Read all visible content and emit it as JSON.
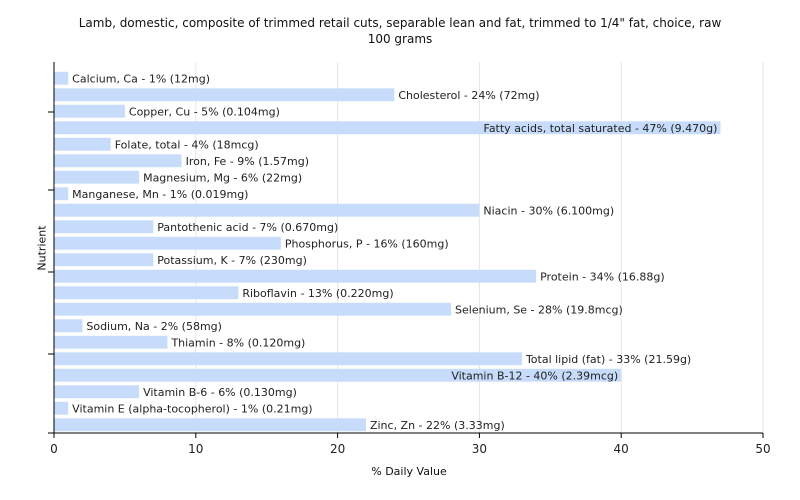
{
  "chart_data": {
    "type": "bar",
    "orientation": "horizontal",
    "title": "Lamb, domestic, composite of trimmed retail cuts, separable lean and fat, trimmed to 1/4\" fat, choice, raw",
    "subtitle": "100 grams",
    "xlabel": "% Daily Value",
    "ylabel": "Nutrient",
    "xlim": [
      0,
      50
    ],
    "xticks": [
      0,
      10,
      20,
      30,
      40,
      50
    ],
    "grid": true,
    "bar_color": "#c6dcfa",
    "categories": [
      "Calcium, Ca",
      "Cholesterol",
      "Copper, Cu",
      "Fatty acids, total saturated",
      "Folate, total",
      "Iron, Fe",
      "Magnesium, Mg",
      "Manganese, Mn",
      "Niacin",
      "Pantothenic acid",
      "Phosphorus, P",
      "Potassium, K",
      "Protein",
      "Riboflavin",
      "Selenium, Se",
      "Sodium, Na",
      "Thiamin",
      "Total lipid (fat)",
      "Vitamin B-12",
      "Vitamin B-6",
      "Vitamin E (alpha-tocopherol)",
      "Zinc, Zn"
    ],
    "values": [
      1,
      24,
      5,
      47,
      4,
      9,
      6,
      1,
      30,
      7,
      16,
      7,
      34,
      13,
      28,
      2,
      8,
      33,
      40,
      6,
      1,
      22
    ],
    "labels": [
      "Calcium, Ca - 1% (12mg)",
      "Cholesterol - 24% (72mg)",
      "Copper, Cu - 5% (0.104mg)",
      "Fatty acids, total saturated - 47% (9.470g)",
      "Folate, total - 4% (18mcg)",
      "Iron, Fe - 9% (1.57mg)",
      "Magnesium, Mg - 6% (22mg)",
      "Manganese, Mn - 1% (0.019mg)",
      "Niacin - 30% (6.100mg)",
      "Pantothenic acid - 7% (0.670mg)",
      "Phosphorus, P - 16% (160mg)",
      "Potassium, K - 7% (230mg)",
      "Protein - 34% (16.88g)",
      "Riboflavin - 13% (0.220mg)",
      "Selenium, Se - 28% (19.8mcg)",
      "Sodium, Na - 2% (58mg)",
      "Thiamin - 8% (0.120mg)",
      "Total lipid (fat) - 33% (21.59g)",
      "Vitamin B-12 - 40% (2.39mcg)",
      "Vitamin B-6 - 6% (0.130mg)",
      "Vitamin E (alpha-tocopherol) - 1% (0.21mg)",
      "Zinc, Zn - 22% (3.33mg)"
    ]
  }
}
